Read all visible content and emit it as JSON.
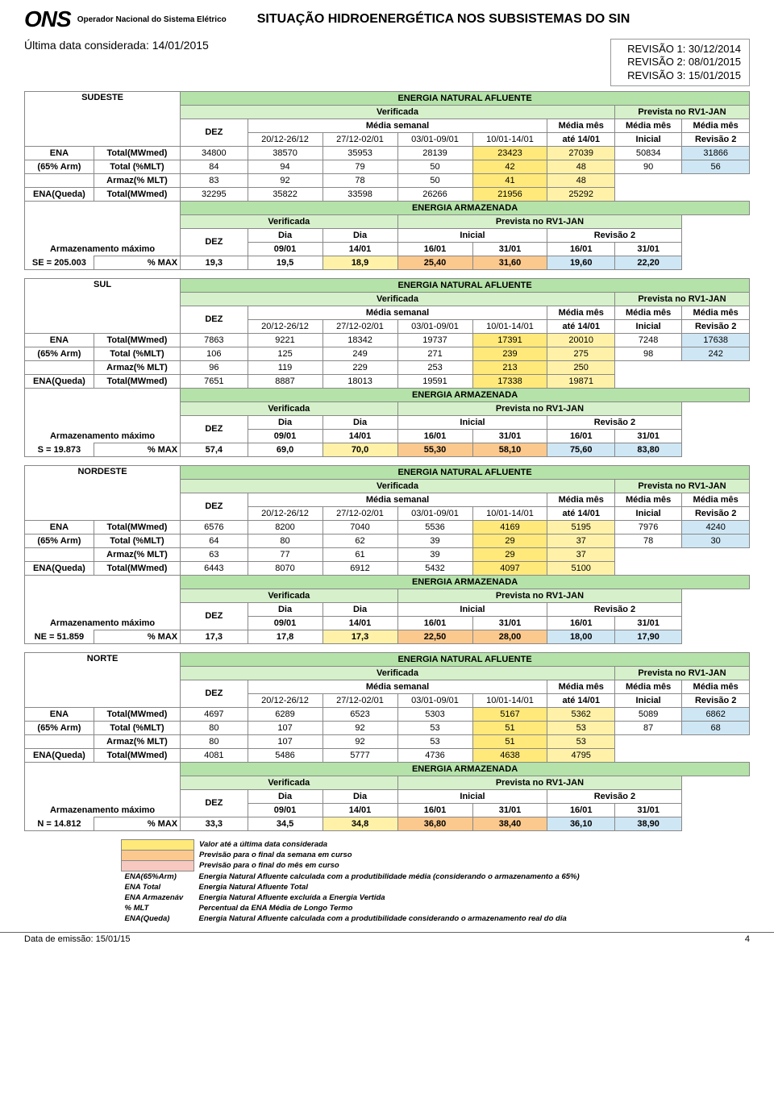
{
  "header": {
    "logo": "ONS",
    "operator": "Operador Nacional do Sistema Elétrico",
    "title": "SITUAÇÃO HIDROENERGÉTICA NOS SUBSISTEMAS DO SIN"
  },
  "subheader": {
    "last_date_label": "Última data considerada: 14/01/2015",
    "rev1": "REVISÃO 1: 30/12/2014",
    "rev2": "REVISÃO 2: 08/01/2015",
    "rev3": "REVISÃO 3: 15/01/2015"
  },
  "colors": {
    "green": "#b4e2a8",
    "green_lt": "#d6f0cb",
    "blue_lt": "#cfe7f5",
    "yellow": "#fff2a8",
    "yellow2": "#ffe97a",
    "orange": "#fbc98e",
    "orange2": "#f7b36b",
    "pink": "#f7c8c0"
  },
  "col_labels": {
    "ena_title": "ENERGIA NATURAL AFLUENTE",
    "verificada": "Verificada",
    "prevista": "Prevista no RV1-JAN",
    "dez": "DEZ",
    "media_semanal": "Média semanal",
    "media_mes": "Média mês",
    "w1": "20/12-26/12",
    "w2": "27/12-02/01",
    "w3": "03/01-09/01",
    "w4": "10/01-14/01",
    "ate": "até 14/01",
    "inicial_col": "Inicial",
    "rev2_col": "Revisão 2",
    "ea_title": "ENERGIA ARMAZENADA",
    "dia": "Dia",
    "d0901": "09/01",
    "d1401": "14/01",
    "d1601": "16/01",
    "d3101": "31/01",
    "inicial": "Inicial",
    "revisao2": "Revisão 2",
    "pmax": "% MAX"
  },
  "row_labels": {
    "ena": "ENA",
    "arm65": "(65% Arm)",
    "total_mw": "Total(MWmed)",
    "total_mlt": "Total (%MLT)",
    "armaz_mlt": "Armaz(% MLT)",
    "ena_queda": "ENA(Queda)",
    "armz_max": "Armazenamento máximo"
  },
  "regions": [
    {
      "name": "SUDESTE",
      "storage_code": "SE = 205.003",
      "ena_rows": [
        {
          "label": "ena_total_mw",
          "cells": [
            "34800",
            "38570",
            "35953",
            "28139",
            "23423",
            "27039",
            "50834",
            "31866"
          ],
          "hl": {
            "4": "yellow2",
            "5": "yellow",
            "7": "blue_lt"
          }
        },
        {
          "label": "total_mlt",
          "cells": [
            "84",
            "94",
            "79",
            "50",
            "42",
            "48",
            "90",
            "56"
          ],
          "hl": {
            "4": "yellow2",
            "5": "yellow",
            "7": "blue_lt"
          }
        },
        {
          "label": "armaz_mlt",
          "cells": [
            "83",
            "92",
            "78",
            "50",
            "41",
            "48",
            "",
            ""
          ],
          "hl": {
            "4": "yellow2",
            "5": "yellow"
          }
        },
        {
          "label": "ena_queda",
          "cells": [
            "32295",
            "35822",
            "33598",
            "26266",
            "21956",
            "25292",
            "",
            ""
          ],
          "hl": {
            "4": "yellow2",
            "5": "yellow"
          }
        }
      ],
      "ea_row": [
        "19,3",
        "19,5",
        "18,9",
        "25,40",
        "31,60",
        "19,60",
        "22,20"
      ],
      "ea_hl": {
        "2": "yellow",
        "3": "orange",
        "4": "orange",
        "5": "blue_lt",
        "6": "blue_lt"
      }
    },
    {
      "name": "SUL",
      "storage_code": "S =  19.873",
      "ena_rows": [
        {
          "label": "ena_total_mw",
          "cells": [
            "7863",
            "9221",
            "18342",
            "19737",
            "17391",
            "20010",
            "7248",
            "17638"
          ],
          "hl": {
            "4": "yellow2",
            "5": "yellow",
            "7": "blue_lt"
          }
        },
        {
          "label": "total_mlt",
          "cells": [
            "106",
            "125",
            "249",
            "271",
            "239",
            "275",
            "98",
            "242"
          ],
          "hl": {
            "4": "yellow2",
            "5": "yellow",
            "7": "blue_lt"
          }
        },
        {
          "label": "armaz_mlt",
          "cells": [
            "96",
            "119",
            "229",
            "253",
            "213",
            "250",
            "",
            ""
          ],
          "hl": {
            "4": "yellow2",
            "5": "yellow"
          }
        },
        {
          "label": "ena_queda",
          "cells": [
            "7651",
            "8887",
            "18013",
            "19591",
            "17338",
            "19871",
            "",
            ""
          ],
          "hl": {
            "4": "yellow2",
            "5": "yellow"
          }
        }
      ],
      "ea_row": [
        "57,4",
        "69,0",
        "70,0",
        "55,30",
        "58,10",
        "75,60",
        "83,80"
      ],
      "ea_hl": {
        "2": "yellow",
        "3": "orange",
        "4": "orange",
        "5": "blue_lt",
        "6": "blue_lt"
      }
    },
    {
      "name": "NORDESTE",
      "storage_code": "NE = 51.859",
      "ena_rows": [
        {
          "label": "ena_total_mw",
          "cells": [
            "6576",
            "8200",
            "7040",
            "5536",
            "4169",
            "5195",
            "7976",
            "4240"
          ],
          "hl": {
            "4": "yellow2",
            "5": "yellow",
            "7": "blue_lt"
          }
        },
        {
          "label": "total_mlt",
          "cells": [
            "64",
            "80",
            "62",
            "39",
            "29",
            "37",
            "78",
            "30"
          ],
          "hl": {
            "4": "yellow2",
            "5": "yellow",
            "7": "blue_lt"
          }
        },
        {
          "label": "armaz_mlt",
          "cells": [
            "63",
            "77",
            "61",
            "39",
            "29",
            "37",
            "",
            ""
          ],
          "hl": {
            "4": "yellow2",
            "5": "yellow"
          }
        },
        {
          "label": "ena_queda",
          "cells": [
            "6443",
            "8070",
            "6912",
            "5432",
            "4097",
            "5100",
            "",
            ""
          ],
          "hl": {
            "4": "yellow2",
            "5": "yellow"
          }
        }
      ],
      "ea_row": [
        "17,3",
        "17,8",
        "17,3",
        "22,50",
        "28,00",
        "18,00",
        "17,90"
      ],
      "ea_hl": {
        "2": "yellow",
        "3": "orange",
        "4": "orange",
        "5": "blue_lt",
        "6": "blue_lt"
      }
    },
    {
      "name": "NORTE",
      "storage_code": "N = 14.812",
      "ena_rows": [
        {
          "label": "ena_total_mw",
          "cells": [
            "4697",
            "6289",
            "6523",
            "5303",
            "5167",
            "5362",
            "5089",
            "6862"
          ],
          "hl": {
            "4": "yellow2",
            "5": "yellow",
            "7": "blue_lt"
          }
        },
        {
          "label": "total_mlt",
          "cells": [
            "80",
            "107",
            "92",
            "53",
            "51",
            "53",
            "87",
            "68"
          ],
          "hl": {
            "4": "yellow2",
            "5": "yellow",
            "7": "blue_lt"
          }
        },
        {
          "label": "armaz_mlt",
          "cells": [
            "80",
            "107",
            "92",
            "53",
            "51",
            "53",
            "",
            ""
          ],
          "hl": {
            "4": "yellow2",
            "5": "yellow"
          }
        },
        {
          "label": "ena_queda",
          "cells": [
            "4081",
            "5486",
            "5777",
            "4736",
            "4638",
            "4795",
            "",
            ""
          ],
          "hl": {
            "4": "yellow2",
            "5": "yellow"
          }
        }
      ],
      "ea_row": [
        "33,3",
        "34,5",
        "34,8",
        "36,80",
        "38,40",
        "36,10",
        "38,90"
      ],
      "ea_hl": {
        "2": "yellow",
        "3": "orange",
        "4": "orange",
        "5": "blue_lt",
        "6": "blue_lt"
      }
    }
  ],
  "legend": {
    "l1": "Valor até a última data considerada",
    "l2": "Previsão para o final da semana em curso",
    "l3": "Previsão para o final do mês em curso",
    "k_ena65": "ENA(65%Arm)",
    "d_ena65": "Energia Natural Afluente calculada com a produtibilidade média (considerando o armazenamento a 65%)",
    "k_enatot": "ENA Total",
    "d_enatot": "Energia Natural Afluente Total",
    "k_enaarm": "ENA Armazenáv",
    "d_enaarm": "Energia Natural Afluente excluída a Energia Vertida",
    "k_mlt": "% MLT",
    "d_mlt": "Percentual da ENA Média de Longo Termo",
    "k_enaq": "ENA(Queda)",
    "d_enaq": "Energia Natural Afluente calculada com a produtibilidade considerando o armazenamento real do dia"
  },
  "footer": {
    "emission": "Data de emissão: 15/01/15",
    "page": "4"
  }
}
